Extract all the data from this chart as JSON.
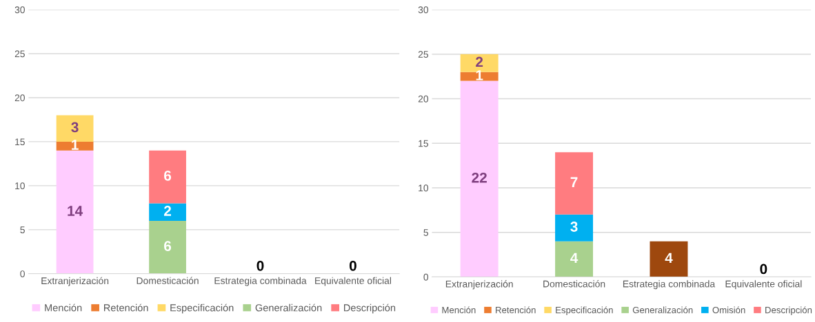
{
  "chart_data": [
    {
      "type": "bar",
      "stacked": true,
      "categories": [
        "Extranjerización",
        "Domesticación",
        "Estrategia combinada",
        "Equivalente oficial"
      ],
      "ylim": [
        0,
        30
      ],
      "yticks": [
        0,
        5,
        10,
        15,
        20,
        25,
        30
      ],
      "grid": "y",
      "legend": "bottom",
      "data_labels": true,
      "series": [
        {
          "name": "Mención",
          "color": "#ffccff",
          "values": [
            14,
            null,
            null,
            null
          ]
        },
        {
          "name": "Retención",
          "color": "#ed7d31",
          "values": [
            1,
            null,
            null,
            null
          ]
        },
        {
          "name": "Especificación",
          "color": "#ffd966",
          "values": [
            3,
            null,
            null,
            null
          ]
        },
        {
          "name": "Generalización",
          "color": "#a9d18e",
          "values": [
            null,
            6,
            null,
            null
          ]
        },
        {
          "color": "#00b0f0",
          "values": [
            null,
            2,
            null,
            null
          ]
        },
        {
          "name": "Descripción",
          "color": "#ff7c80",
          "values": [
            null,
            6,
            null,
            null
          ]
        },
        {
          "color": "#9e480e",
          "values": [
            null,
            null,
            0,
            0
          ]
        }
      ]
    },
    {
      "type": "bar",
      "stacked": true,
      "categories": [
        "Extranjerización",
        "Domesticación",
        "Estrategia combinada",
        "Equivalente oficial"
      ],
      "ylim": [
        0,
        30
      ],
      "yticks": [
        0,
        5,
        10,
        15,
        20,
        25,
        30
      ],
      "grid": "y",
      "legend": "bottom",
      "data_labels": true,
      "series": [
        {
          "name": "Mención",
          "color": "#ffccff",
          "values": [
            22,
            null,
            null,
            null
          ]
        },
        {
          "name": "Retención",
          "color": "#ed7d31",
          "values": [
            1,
            null,
            null,
            null
          ]
        },
        {
          "name": "Especificación",
          "color": "#ffd966",
          "values": [
            2,
            null,
            null,
            null
          ]
        },
        {
          "name": "Generalización",
          "color": "#a9d18e",
          "values": [
            null,
            4,
            null,
            null
          ]
        },
        {
          "name": "Omisión",
          "color": "#00b0f0",
          "values": [
            null,
            3,
            null,
            null
          ]
        },
        {
          "name": "Descripción",
          "color": "#ff7c80",
          "values": [
            null,
            7,
            null,
            null
          ]
        },
        {
          "color": "#9e480e",
          "values": [
            null,
            null,
            4,
            0
          ]
        }
      ]
    }
  ]
}
